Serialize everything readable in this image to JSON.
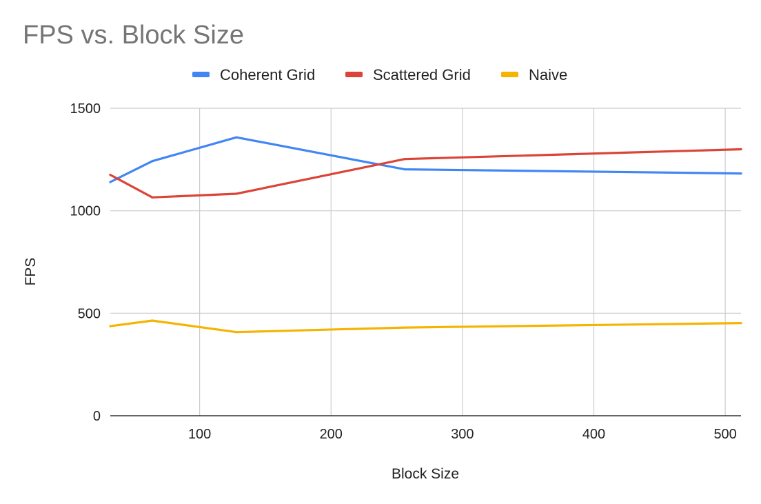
{
  "chart_data": {
    "type": "line",
    "title": "FPS vs. Block Size",
    "xlabel": "Block Size",
    "ylabel": "FPS",
    "xlim": [
      32,
      512
    ],
    "ylim": [
      0,
      1500
    ],
    "xticks": [
      100,
      200,
      300,
      400,
      500
    ],
    "yticks": [
      0,
      500,
      1000,
      1500
    ],
    "grid": true,
    "legend_position": "top",
    "x": [
      32,
      64,
      128,
      256,
      512
    ],
    "series": [
      {
        "name": "Coherent Grid",
        "color": "#4285f4",
        "values": [
          1140,
          1242,
          1358,
          1202,
          1182
        ]
      },
      {
        "name": "Scattered Grid",
        "color": "#db4437",
        "values": [
          1175,
          1065,
          1083,
          1252,
          1300
        ]
      },
      {
        "name": "Naive",
        "color": "#f4b400",
        "values": [
          437,
          464,
          408,
          430,
          452
        ]
      }
    ]
  }
}
